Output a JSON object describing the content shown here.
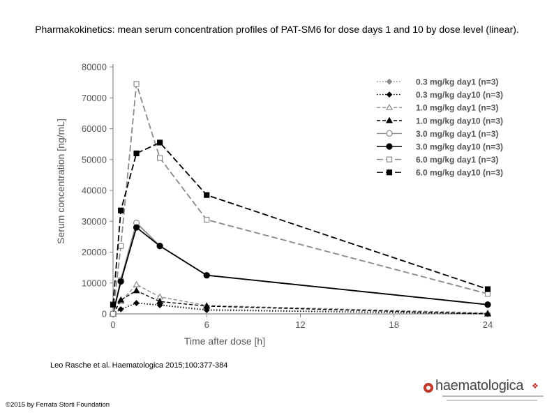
{
  "slide": {
    "title": "Pharmakokinetics: mean serum concentration profiles of PAT-SM6 for dose days 1 and 10 by dose level (linear).",
    "citation": "Leo Rasche et al. Haematologica 2015;100:377-384",
    "copyright": "©2015 by Ferrata Storti Foundation",
    "logo_text": "haematologica"
  },
  "chart_data": {
    "type": "line",
    "title": "",
    "xlabel": "Time after dose [h]",
    "ylabel": "Serum concentration [ng/mL]",
    "xlim": [
      0,
      24
    ],
    "ylim": [
      0,
      80000
    ],
    "x_ticks": [
      0,
      6,
      12,
      18,
      24
    ],
    "y_ticks": [
      0,
      10000,
      20000,
      30000,
      40000,
      50000,
      60000,
      70000,
      80000
    ],
    "x_tick_labels": [
      "0",
      "6",
      "12",
      "18",
      "24"
    ],
    "y_tick_labels": [
      "0",
      "10000",
      "20000",
      "30000",
      "40000",
      "50000",
      "60000",
      "70000",
      "80000"
    ],
    "legend_position": "top-right",
    "x": [
      0,
      0.5,
      1.5,
      3,
      6,
      24
    ],
    "series": [
      {
        "name": "0.3 mg/kg day1 (n=3)",
        "color": "#8a8a8a",
        "marker": "diamond-filled",
        "dash": "dot",
        "values": [
          0,
          1500,
          3500,
          3000,
          1500,
          200
        ]
      },
      {
        "name": "0.3 mg/kg day10 (n=3)",
        "color": "#000000",
        "marker": "diamond-filled",
        "dash": "dot",
        "values": [
          0,
          1500,
          3500,
          2800,
          1200,
          0
        ]
      },
      {
        "name": "1.0 mg/kg day1 (n=3)",
        "color": "#8a8a8a",
        "marker": "triangle-open",
        "dash": "dash",
        "values": [
          0,
          4000,
          9500,
          5500,
          2700,
          300
        ]
      },
      {
        "name": "1.0 mg/kg day10 (n=3)",
        "color": "#000000",
        "marker": "triangle-filled",
        "dash": "dash",
        "values": [
          0,
          4500,
          7500,
          4000,
          2500,
          0
        ]
      },
      {
        "name": "3.0 mg/kg day1 (n=3)",
        "color": "#8a8a8a",
        "marker": "circle-open",
        "dash": "solid",
        "values": [
          0,
          11000,
          29500,
          22000,
          12500,
          3000
        ]
      },
      {
        "name": "3.0 mg/kg day10 (n=3)",
        "color": "#000000",
        "marker": "circle-filled",
        "dash": "solid",
        "values": [
          0,
          10500,
          28000,
          22000,
          12500,
          3000
        ]
      },
      {
        "name": "6.0 mg/kg day1 (n=3)",
        "color": "#8a8a8a",
        "marker": "square-open",
        "dash": "longdash",
        "values": [
          0,
          22000,
          74500,
          50500,
          30500,
          6500
        ]
      },
      {
        "name": "6.0 mg/kg day10 (n=3)",
        "color": "#000000",
        "marker": "square-filled",
        "dash": "longdash",
        "values": [
          3000,
          33500,
          52000,
          55500,
          38500,
          8000
        ]
      }
    ]
  }
}
